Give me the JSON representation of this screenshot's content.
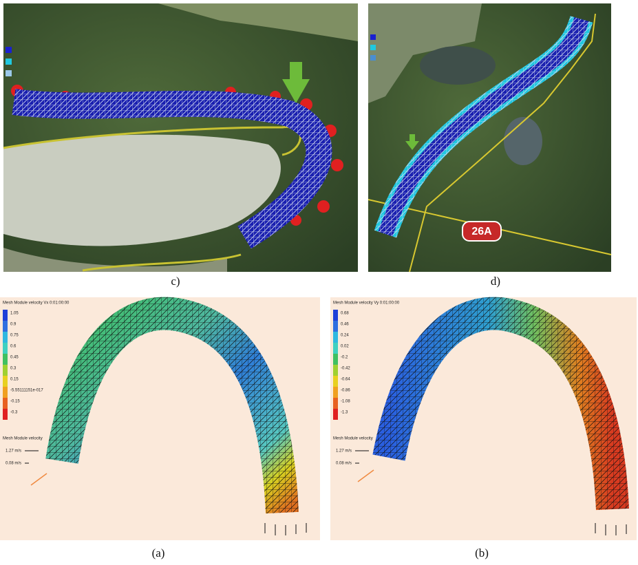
{
  "figure": {
    "c": {
      "label": "c)"
    },
    "d": {
      "label": "d)",
      "road_sign": "26A"
    },
    "a": {
      "label": "(a)",
      "legend_title": "Mesh Module velocity Vx 0:01:00:00",
      "legend_values": [
        "1.05",
        "0.9",
        "0.75",
        "0.6",
        "0.45",
        "0.3",
        "0.15",
        "-5.55111151e-017",
        "-0.15",
        "-0.3"
      ],
      "vector_title": "Mesh Module velocity",
      "vector_labels": [
        "1.27 m/s",
        "0.08 m/s"
      ]
    },
    "b": {
      "label": "(b)",
      "legend_title": "Mesh Module velocity Vy 0:01:00:00",
      "legend_values": [
        "0.68",
        "0.46",
        "0.24",
        "0.02",
        "-0.2",
        "-0.42",
        "-0.64",
        "-0.86",
        "-1.08",
        "-1.3"
      ],
      "vector_title": "Mesh Module velocity",
      "vector_labels": [
        "1.27 m/s",
        "0.08 m/s"
      ]
    }
  }
}
